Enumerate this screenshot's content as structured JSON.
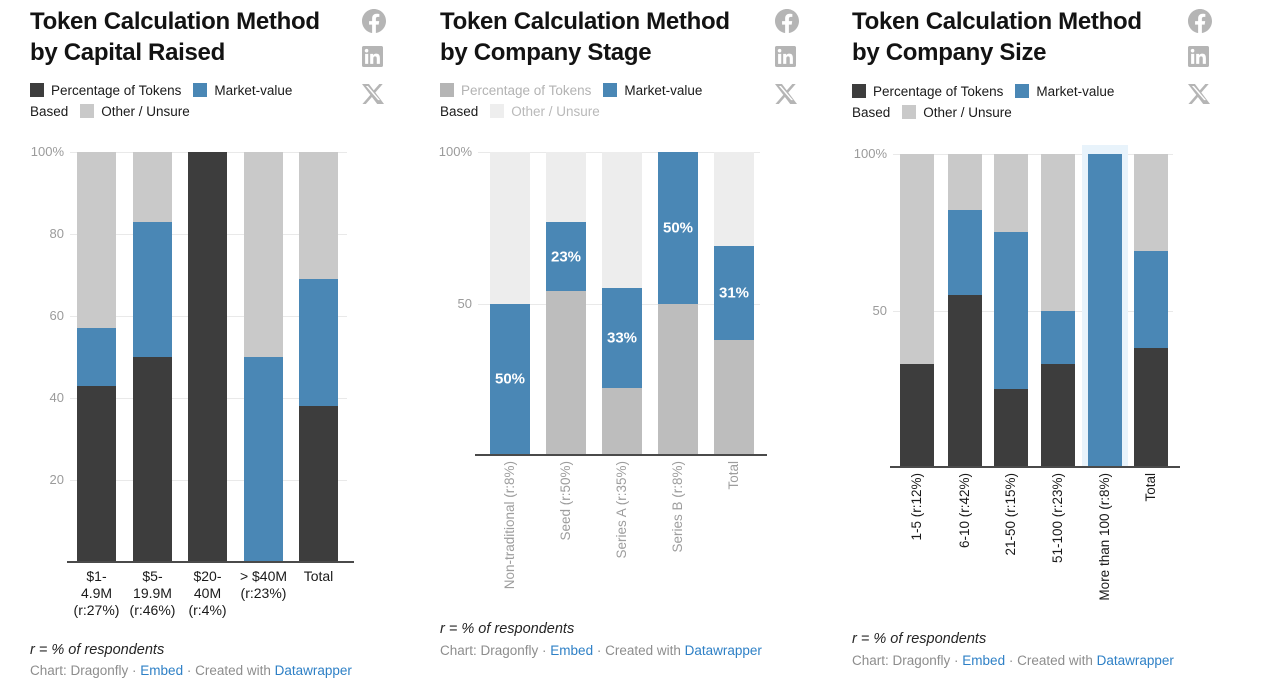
{
  "colors": {
    "dark": "#3d3d3d",
    "blue": "#4a87b5",
    "light_gray": "#c9c9c9",
    "dimmed_dark": "#bdbdbd",
    "dimmed_light": "#ededed",
    "grid": "#e9e9e9",
    "axis_line": "#4a4a4a",
    "tick_label": "#9b9b9b",
    "link_blue": "#2e80c6",
    "icon_gray": "#b5b5b5",
    "highlight": "#e8f3fb"
  },
  "social": [
    {
      "name": "facebook"
    },
    {
      "name": "linkedin"
    },
    {
      "name": "x"
    }
  ],
  "charts": [
    {
      "title": "Token Calculation Method\nby Capital Raised",
      "legend_lines": [
        [
          {
            "swatch": "#3d3d3d"
          },
          {
            "text": "Percentage of Tokens",
            "color": "#1a1a1a"
          },
          {
            "swatch": "#4a87b5",
            "gap": true
          },
          {
            "text": "Market-value",
            "color": "#1a1a1a"
          }
        ],
        [
          {
            "text": "Based",
            "color": "#1a1a1a"
          },
          {
            "swatch": "#c9c9c9",
            "gap": true
          },
          {
            "text": "Other / Unsure",
            "color": "#1a1a1a"
          }
        ]
      ],
      "footnote": "r = % of respondents",
      "attribution": [
        {
          "t": "Chart: Dragonfly · "
        },
        {
          "l": "Embed"
        },
        {
          "t": " · Created with "
        },
        {
          "l": "Datawrapper"
        }
      ],
      "chart_data": {
        "type": "stacked_bar_100",
        "unit": "%",
        "categories": [
          "$1-\n4.9M\n(r:27%)",
          "$5-\n19.9M\n(r:46%)",
          "$20-\n40M\n(r:4%)",
          "> $40M\n(r:23%)",
          "Total"
        ],
        "series": [
          {
            "name": "Percentage of Tokens Based",
            "color": "#3d3d3d",
            "values": [
              43,
              50,
              100,
              0,
              38
            ]
          },
          {
            "name": "Market-value",
            "color": "#4a87b5",
            "values": [
              14,
              33,
              0,
              50,
              31
            ]
          },
          {
            "name": "Other / Unsure",
            "color": "#c9c9c9",
            "values": [
              43,
              17,
              0,
              50,
              31
            ]
          }
        ],
        "ylim": [
          0,
          100
        ],
        "y_ticks": [
          {
            "value": 20,
            "label": "20"
          },
          {
            "value": 40,
            "label": "40"
          },
          {
            "value": 60,
            "label": "60"
          },
          {
            "value": 80,
            "label": "80"
          },
          {
            "value": 100,
            "label": "100%"
          }
        ],
        "grid": true,
        "x_label_rotation": "horizontal",
        "x_label_color": "#1a1a1a",
        "legend_position": "top"
      }
    },
    {
      "title": "Token Calculation Method\nby Company Stage",
      "legend_lines": [
        [
          {
            "swatch": "#b5b5b5"
          },
          {
            "text": "Percentage of Tokens",
            "color": "#b3b3b3"
          },
          {
            "swatch": "#4a87b5",
            "gap": true
          },
          {
            "text": "Market-value",
            "color": "#1a1a1a"
          }
        ],
        [
          {
            "text": "Based",
            "color": "#1a1a1a"
          },
          {
            "swatch": "#eeeeee",
            "gap": true
          },
          {
            "text": "Other / Unsure",
            "color": "#b9b9b9"
          }
        ]
      ],
      "footnote": "r = % of respondents",
      "attribution": [
        {
          "t": "Chart: Dragonfly · "
        },
        {
          "l": "Embed"
        },
        {
          "t": " · Created with "
        },
        {
          "l": "Datawrapper"
        }
      ],
      "chart_data": {
        "type": "stacked_bar_100",
        "unit": "%",
        "state": "market-value series highlighted, other series dimmed",
        "categories": [
          "Non-traditional (r:8%)",
          "Seed (r:50%)",
          "Series A (r:35%)",
          "Series B (r:8%)",
          "Total"
        ],
        "series": [
          {
            "name": "Percentage of Tokens Based",
            "color": "#bdbdbd",
            "values": [
              0,
              54,
              22,
              50,
              38
            ]
          },
          {
            "name": "Market-value",
            "color": "#4a87b5",
            "values": [
              50,
              23,
              33,
              50,
              31
            ],
            "value_labels": [
              "50%",
              "23%",
              "33%",
              "50%",
              "31%"
            ]
          },
          {
            "name": "Other / Unsure",
            "color": "#ededed",
            "values": [
              50,
              23,
              45,
              0,
              31
            ]
          }
        ],
        "ylim": [
          0,
          100
        ],
        "y_ticks": [
          {
            "value": 50,
            "label": "50"
          },
          {
            "value": 100,
            "label": "100%"
          }
        ],
        "grid": true,
        "x_label_rotation": "vertical",
        "x_label_color": "#9d9d9d",
        "legend_position": "top"
      }
    },
    {
      "title": "Token Calculation Method\nby Company Size",
      "legend_lines": [
        [
          {
            "swatch": "#3d3d3d"
          },
          {
            "text": "Percentage of Tokens",
            "color": "#1a1a1a"
          },
          {
            "swatch": "#4a87b5",
            "gap": true
          },
          {
            "text": "Market-value",
            "color": "#1a1a1a"
          }
        ],
        [
          {
            "text": "Based",
            "color": "#1a1a1a"
          },
          {
            "swatch": "#c9c9c9",
            "gap": true
          },
          {
            "text": "Other / Unsure",
            "color": "#1a1a1a"
          }
        ]
      ],
      "footnote": "r = % of respondents",
      "attribution": [
        {
          "t": "Chart: Dragonfly · "
        },
        {
          "l": "Embed"
        },
        {
          "t": " · Created with "
        },
        {
          "l": "Datawrapper"
        }
      ],
      "chart_data": {
        "type": "stacked_bar_100",
        "unit": "%",
        "highlight_index": 4,
        "categories": [
          "1-5 (r:12%)",
          "6-10 (r:42%)",
          "21-50 (r:15%)",
          "51-100 (r:23%)",
          "More than 100 (r:8%)",
          "Total"
        ],
        "series": [
          {
            "name": "Percentage of Tokens Based",
            "color": "#3d3d3d",
            "values": [
              33,
              55,
              25,
              33,
              0,
              38
            ]
          },
          {
            "name": "Market-value",
            "color": "#4a87b5",
            "values": [
              0,
              27,
              50,
              17,
              100,
              31
            ]
          },
          {
            "name": "Other / Unsure",
            "color": "#c9c9c9",
            "values": [
              67,
              18,
              25,
              50,
              0,
              31
            ]
          }
        ],
        "ylim": [
          0,
          100
        ],
        "y_ticks": [
          {
            "value": 50,
            "label": "50"
          },
          {
            "value": 100,
            "label": "100%"
          }
        ],
        "grid": true,
        "x_label_rotation": "vertical",
        "x_label_color": "#1a1a1a",
        "legend_position": "top"
      }
    }
  ]
}
